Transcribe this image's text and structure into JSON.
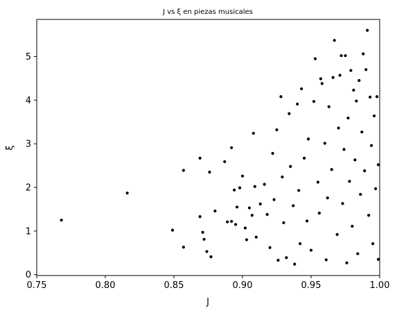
{
  "chart_data": {
    "type": "scatter",
    "title": "J vs ξ en piezas musicales",
    "xlabel": "J",
    "ylabel": "ξ",
    "xlim": [
      0.75,
      1.0
    ],
    "ylim": [
      -0.02,
      5.85
    ],
    "xticks": [
      "0.75",
      "0.80",
      "0.85",
      "0.90",
      "0.95",
      "1.00"
    ],
    "yticks": [
      "0",
      "1",
      "2",
      "3",
      "4",
      "5"
    ],
    "grid": false,
    "marker_color": "#000000",
    "series": [
      {
        "points": [
          [
            0.768,
            1.25
          ],
          [
            0.816,
            1.87
          ],
          [
            0.849,
            1.02
          ],
          [
            0.857,
            2.39
          ],
          [
            0.857,
            0.63
          ],
          [
            0.869,
            2.67
          ],
          [
            0.869,
            1.33
          ],
          [
            0.871,
            0.97
          ],
          [
            0.872,
            0.81
          ],
          [
            0.874,
            0.53
          ],
          [
            0.876,
            2.35
          ],
          [
            0.877,
            0.41
          ],
          [
            0.88,
            1.46
          ],
          [
            0.887,
            2.59
          ],
          [
            0.889,
            1.21
          ],
          [
            0.892,
            2.91
          ],
          [
            0.892,
            1.22
          ],
          [
            0.894,
            1.94
          ],
          [
            0.895,
            1.15
          ],
          [
            0.896,
            1.55
          ],
          [
            0.898,
            1.99
          ],
          [
            0.9,
            2.26
          ],
          [
            0.902,
            1.07
          ],
          [
            0.903,
            0.8
          ],
          [
            0.905,
            1.53
          ],
          [
            0.907,
            1.36
          ],
          [
            0.908,
            3.24
          ],
          [
            0.909,
            2.02
          ],
          [
            0.91,
            0.86
          ],
          [
            0.913,
            1.62
          ],
          [
            0.916,
            2.07
          ],
          [
            0.918,
            1.38
          ],
          [
            0.92,
            0.62
          ],
          [
            0.922,
            2.78
          ],
          [
            0.923,
            1.72
          ],
          [
            0.925,
            3.32
          ],
          [
            0.926,
            0.33
          ],
          [
            0.928,
            4.08
          ],
          [
            0.929,
            2.24
          ],
          [
            0.93,
            1.19
          ],
          [
            0.932,
            0.39
          ],
          [
            0.934,
            3.69
          ],
          [
            0.935,
            2.48
          ],
          [
            0.937,
            1.58
          ],
          [
            0.938,
            0.24
          ],
          [
            0.94,
            3.91
          ],
          [
            0.941,
            1.93
          ],
          [
            0.942,
            0.71
          ],
          [
            0.943,
            4.26
          ],
          [
            0.945,
            2.67
          ],
          [
            0.947,
            1.23
          ],
          [
            0.948,
            3.11
          ],
          [
            0.95,
            0.56
          ],
          [
            0.952,
            3.97
          ],
          [
            0.953,
            4.95
          ],
          [
            0.955,
            2.12
          ],
          [
            0.956,
            1.41
          ],
          [
            0.957,
            4.49
          ],
          [
            0.958,
            4.38
          ],
          [
            0.96,
            3.01
          ],
          [
            0.961,
            0.34
          ],
          [
            0.962,
            1.76
          ],
          [
            0.963,
            3.85
          ],
          [
            0.965,
            2.41
          ],
          [
            0.966,
            4.52
          ],
          [
            0.967,
            5.37
          ],
          [
            0.969,
            0.92
          ],
          [
            0.97,
            3.36
          ],
          [
            0.971,
            4.57
          ],
          [
            0.972,
            5.02
          ],
          [
            0.973,
            1.63
          ],
          [
            0.974,
            2.87
          ],
          [
            0.975,
            5.02
          ],
          [
            0.976,
            0.27
          ],
          [
            0.977,
            3.59
          ],
          [
            0.978,
            2.14
          ],
          [
            0.979,
            4.68
          ],
          [
            0.98,
            1.11
          ],
          [
            0.981,
            4.23
          ],
          [
            0.982,
            2.63
          ],
          [
            0.983,
            3.98
          ],
          [
            0.984,
            0.48
          ],
          [
            0.985,
            4.45
          ],
          [
            0.986,
            1.84
          ],
          [
            0.987,
            3.27
          ],
          [
            0.988,
            5.06
          ],
          [
            0.989,
            2.38
          ],
          [
            0.99,
            4.7
          ],
          [
            0.991,
            5.6
          ],
          [
            0.992,
            1.36
          ],
          [
            0.993,
            4.07
          ],
          [
            0.994,
            2.96
          ],
          [
            0.995,
            0.71
          ],
          [
            0.996,
            3.64
          ],
          [
            0.997,
            1.97
          ],
          [
            0.998,
            4.08
          ],
          [
            0.999,
            2.52
          ],
          [
            0.999,
            0.35
          ]
        ]
      }
    ]
  }
}
